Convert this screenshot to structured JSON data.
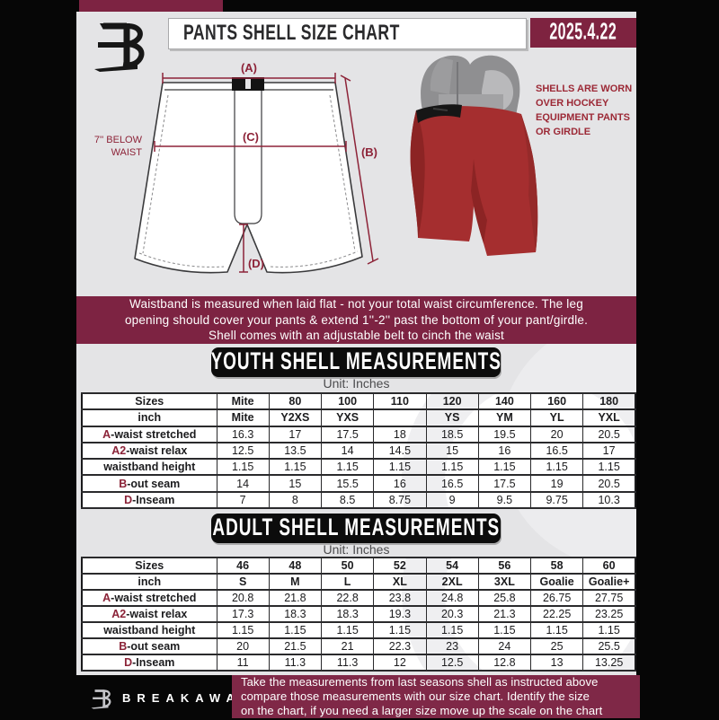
{
  "colors": {
    "maroon_banner": "#7d2342",
    "maroon_date": "#7e2340",
    "maroon_accent": "#8b2338",
    "content_gray": "#e4e4e6",
    "section_black": "#0c0c0c",
    "table_white": "#ffffff"
  },
  "header": {
    "title": "PANTS SHELL SIZE CHART",
    "date": "2025.4.22"
  },
  "diagram": {
    "label_a": "(A)",
    "label_b": "(B)",
    "label_c": "(C)",
    "label_d": "(D)",
    "below_waist_1": "7'' BELOW",
    "below_waist_2": "WAIST",
    "photo_note": [
      "SHELLS ARE WORN",
      "OVER HOCKEY",
      "EQUIPMENT PANTS",
      "OR GIRDLE"
    ]
  },
  "notice": {
    "lines": [
      "Waistband is measured when laid flat - not your total waist circumference. The leg",
      "opening should cover your pants & extend 1''-2'' past the bottom of your pant/girdle.",
      "Shell comes with an adjustable belt to cinch the waist"
    ]
  },
  "youth": {
    "title": "YOUTH SHELL MEASUREMENTS",
    "unit": "Unit: Inches",
    "rows": [
      {
        "header": true,
        "prefix": "",
        "label": "Sizes",
        "values": [
          "Mite",
          "80",
          "100",
          "110",
          "120",
          "140",
          "160",
          "180"
        ]
      },
      {
        "header": true,
        "prefix": "",
        "label": "inch",
        "values": [
          "Mite",
          "Y2XS",
          "YXS",
          "",
          "YS",
          "YM",
          "YL",
          "YXL"
        ]
      },
      {
        "prefix": "A",
        "label": "-waist stretched",
        "values": [
          "16.3",
          "17",
          "17.5",
          "18",
          "18.5",
          "19.5",
          "20",
          "20.5"
        ]
      },
      {
        "prefix": "A2",
        "label": "-waist relax",
        "values": [
          "12.5",
          "13.5",
          "14",
          "14.5",
          "15",
          "16",
          "16.5",
          "17"
        ]
      },
      {
        "prefix": "",
        "label": "waistband height",
        "values": [
          "1.15",
          "1.15",
          "1.15",
          "1.15",
          "1.15",
          "1.15",
          "1.15",
          "1.15"
        ]
      },
      {
        "prefix": "B",
        "label": "-out seam",
        "values": [
          "14",
          "15",
          "15.5",
          "16",
          "16.5",
          "17.5",
          "19",
          "20.5"
        ]
      },
      {
        "prefix": "D",
        "label": "-Inseam",
        "values": [
          "7",
          "8",
          "8.5",
          "8.75",
          "9",
          "9.5",
          "9.75",
          "10.3"
        ]
      }
    ]
  },
  "adult": {
    "title": "ADULT SHELL MEASUREMENTS",
    "unit": "Unit: Inches",
    "rows": [
      {
        "header": true,
        "prefix": "",
        "label": "Sizes",
        "values": [
          "46",
          "48",
          "50",
          "52",
          "54",
          "56",
          "58",
          "60"
        ]
      },
      {
        "header": true,
        "prefix": "",
        "label": "inch",
        "values": [
          "S",
          "M",
          "L",
          "XL",
          "2XL",
          "3XL",
          "Goalie",
          "Goalie+"
        ]
      },
      {
        "prefix": "A",
        "label": "-waist stretched",
        "values": [
          "20.8",
          "21.8",
          "22.8",
          "23.8",
          "24.8",
          "25.8",
          "26.75",
          "27.75"
        ]
      },
      {
        "prefix": "A2",
        "label": "-waist relax",
        "values": [
          "17.3",
          "18.3",
          "18.3",
          "19.3",
          "20.3",
          "21.3",
          "22.25",
          "23.25"
        ]
      },
      {
        "prefix": "",
        "label": "waistband height",
        "values": [
          "1.15",
          "1.15",
          "1.15",
          "1.15",
          "1.15",
          "1.15",
          "1.15",
          "1.15"
        ]
      },
      {
        "prefix": "B",
        "label": "-out seam",
        "values": [
          "20",
          "21.5",
          "21",
          "22.3",
          "23",
          "24",
          "25",
          "25.5"
        ]
      },
      {
        "prefix": "D",
        "label": "-Inseam",
        "values": [
          "11",
          "11.3",
          "11.3",
          "12",
          "12.5",
          "12.8",
          "13",
          "13.25"
        ]
      }
    ]
  },
  "footer": {
    "brand": "BREAKAWAY",
    "lines": [
      "Take the measurements from last seasons shell as instructed above",
      "compare those measurements  with our size chart. Identify the size",
      "on the chart, if you need a larger size move up the scale on the chart"
    ]
  }
}
